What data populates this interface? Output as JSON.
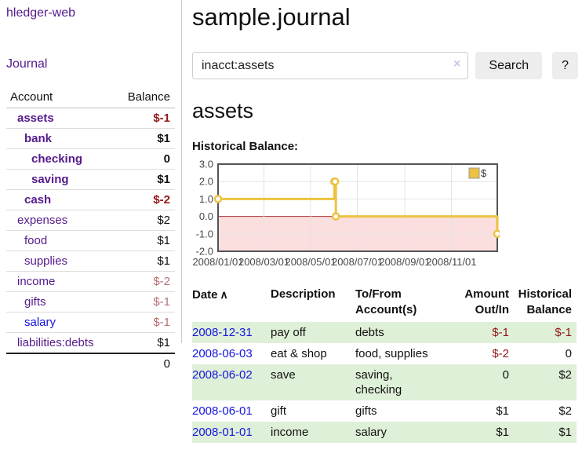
{
  "colors": {
    "link_purple": "#551a8b",
    "link_blue": "#1515e0",
    "negative_strong": "#941616",
    "negative_soft": "#b86f6f",
    "row_stripe_green": "#dff0d8",
    "series_gold": "#edc240"
  },
  "sidebar": {
    "app_title": "hledger-web",
    "journal_label": "Journal",
    "accounts_table": {
      "account_header": "Account",
      "balance_header": "Balance",
      "rows": [
        {
          "name": "assets",
          "indent": 0,
          "bold": true,
          "color": "purple",
          "balance": "$-1",
          "balance_style": "neg-strong"
        },
        {
          "name": "bank",
          "indent": 1,
          "bold": true,
          "color": "purple",
          "balance": "$1",
          "balance_style": "pos"
        },
        {
          "name": "checking",
          "indent": 2,
          "bold": true,
          "color": "purple",
          "balance": "0",
          "balance_style": "pos"
        },
        {
          "name": "saving",
          "indent": 2,
          "bold": true,
          "color": "purple",
          "balance": "$1",
          "balance_style": "pos"
        },
        {
          "name": "cash",
          "indent": 1,
          "bold": true,
          "color": "purple",
          "balance": "$-2",
          "balance_style": "neg-strong"
        },
        {
          "name": "expenses",
          "indent": 0,
          "bold": false,
          "color": "purple",
          "balance": "$2",
          "balance_style": "pos"
        },
        {
          "name": "food",
          "indent": 1,
          "bold": false,
          "color": "purple",
          "balance": "$1",
          "balance_style": "pos"
        },
        {
          "name": "supplies",
          "indent": 1,
          "bold": false,
          "color": "purple",
          "balance": "$1",
          "balance_style": "pos"
        },
        {
          "name": "income",
          "indent": 0,
          "bold": false,
          "color": "purple",
          "balance": "$-2",
          "balance_style": "neg-soft"
        },
        {
          "name": "gifts",
          "indent": 1,
          "bold": false,
          "color": "purple",
          "balance": "$-1",
          "balance_style": "neg-soft"
        },
        {
          "name": "salary",
          "indent": 1,
          "bold": false,
          "color": "blue",
          "balance": "$-1",
          "balance_style": "neg-soft"
        },
        {
          "name": "liabilities:debts",
          "indent": 0,
          "bold": false,
          "color": "purple",
          "balance": "$1",
          "balance_style": "pos"
        }
      ],
      "total": "0"
    }
  },
  "main": {
    "title": "sample.journal",
    "search": {
      "value": "inacct:assets",
      "clear_icon": "×",
      "button_label": "Search",
      "help_label": "?"
    },
    "account_heading": "assets",
    "chart_label": "Historical Balance:",
    "register_table": {
      "headers": {
        "date": "Date",
        "sort_indicator": "∧",
        "description": "Description",
        "accounts": "To/From\nAccount(s)",
        "amount": "Amount\nOut/In",
        "balance": "Historical\nBalance"
      },
      "rows": [
        {
          "date": "2008-12-31",
          "description": "pay off",
          "accounts": "debts",
          "amount": "$-1",
          "amount_negative": true,
          "balance": "$-1",
          "balance_negative": true
        },
        {
          "date": "2008-06-03",
          "description": "eat & shop",
          "accounts": "food, supplies",
          "amount": "$-2",
          "amount_negative": true,
          "balance": "0",
          "balance_negative": false
        },
        {
          "date": "2008-06-02",
          "description": "save",
          "accounts": "saving,\nchecking",
          "amount": "0",
          "amount_negative": false,
          "balance": "$2",
          "balance_negative": false
        },
        {
          "date": "2008-06-01",
          "description": "gift",
          "accounts": "gifts",
          "amount": "$1",
          "amount_negative": false,
          "balance": "$2",
          "balance_negative": false
        },
        {
          "date": "2008-01-01",
          "description": "income",
          "accounts": "salary",
          "amount": "$1",
          "amount_negative": false,
          "balance": "$1",
          "balance_negative": false
        }
      ]
    }
  },
  "chart_data": {
    "type": "line",
    "step": true,
    "title": "Historical Balance",
    "series": [
      {
        "name": "$",
        "color": "#edc240",
        "points": [
          [
            "2008-01-01",
            1
          ],
          [
            "2008-06-01",
            2
          ],
          [
            "2008-06-02",
            2
          ],
          [
            "2008-06-03",
            0
          ],
          [
            "2008-12-31",
            -1
          ]
        ]
      }
    ],
    "xlim": [
      "2008-01-01",
      "2008-12-31"
    ],
    "ylim": [
      -2,
      3
    ],
    "y_ticks": [
      {
        "value": 3,
        "label": "3.0"
      },
      {
        "value": 2,
        "label": "2.0"
      },
      {
        "value": 1,
        "label": "1.0"
      },
      {
        "value": 0,
        "label": "0.0"
      },
      {
        "value": -1,
        "label": "-1.0"
      },
      {
        "value": -2,
        "label": "-2.0"
      }
    ],
    "x_ticks": [
      {
        "date": "2008-01-01",
        "label": "2008/01/01"
      },
      {
        "date": "2008-03-01",
        "label": "2008/03/01"
      },
      {
        "date": "2008-05-01",
        "label": "2008/05/01"
      },
      {
        "date": "2008-07-01",
        "label": "2008/07/01"
      },
      {
        "date": "2008-09-01",
        "label": "2008/09/01"
      },
      {
        "date": "2008-11-01",
        "label": "2008/11/01"
      }
    ],
    "grid": true,
    "negative_region_color": "#fbdede",
    "zero_line_color": "#aa3333",
    "plot_border_color": "#545454",
    "legend": {
      "label": "$",
      "position": "top-right"
    }
  }
}
